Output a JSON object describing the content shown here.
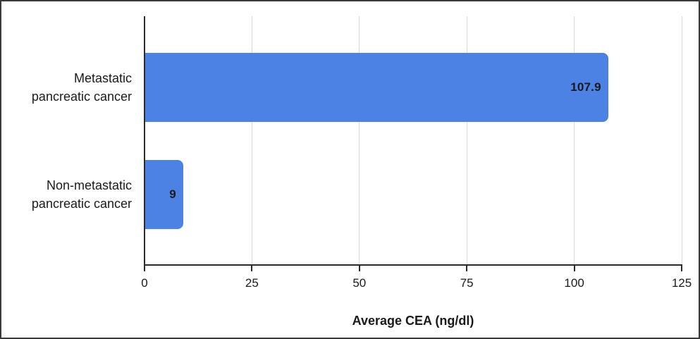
{
  "chart_data": {
    "type": "bar",
    "orientation": "horizontal",
    "title": "",
    "xlabel": "Average CEA (ng/dl)",
    "ylabel": "",
    "categories": [
      {
        "lines": [
          "Metastatic",
          "pancreatic cancer"
        ]
      },
      {
        "lines": [
          "Non-metastatic",
          "pancreatic cancer"
        ]
      }
    ],
    "values": [
      107.9,
      9
    ],
    "value_labels": [
      "107.9",
      "9"
    ],
    "xlim": [
      0,
      125
    ],
    "xticks": [
      "0",
      "25",
      "50",
      "75",
      "100",
      "125"
    ],
    "grid": true,
    "legend": "none",
    "colors": {
      "bar": "#4d82e5",
      "gridline": "#d9d9d9",
      "axis": "#2b2b2b",
      "text": "#1a1a1a",
      "background": "#ffffff",
      "frame_border": "#3a3a3a"
    }
  }
}
